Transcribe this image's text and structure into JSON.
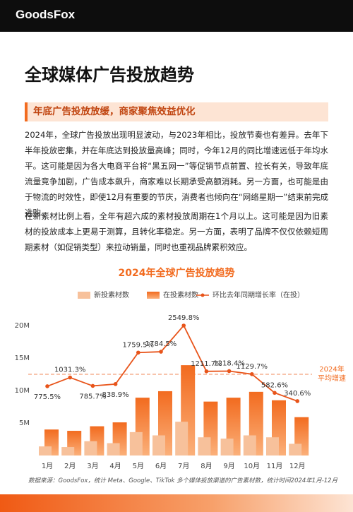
{
  "header": {
    "logo": "GoodsFox"
  },
  "title": "全球媒体广告投放趋势",
  "subtitle": "年底广告投放放缓，商家聚焦效益优化",
  "paragraphs": [
    "2024年，全球广告投放出现明显波动，与2023年相比，投放节奏也有差异。去年下半年投放密集，并在年底达到投放量高峰；同时，今年12月的同比增速远低于年均水平。这可能是因为各大电商平台将“黑五网一”等促销节点前置、拉长有关，导致年底流量竞争加剧，广告成本飙升，商家难以长期承受高额消耗。另一方面，也可能是由于物流的时效性，即使12月有重要的节庆，消费者也倾向在“网络星期一”结束前完成选购。",
    "在新素材比例上看，全年有超六成的素材投放周期在1个月以上。这可能是因为旧素材的投放成本上更易于测算，且转化率稳定。另一方面，表明了品牌不仅仅依赖短周期素材（如促销类型）来拉动销量，同时也重视品牌累积效应。"
  ],
  "chart_data": {
    "type": "bar",
    "title": "2024年全球广告投放趋势",
    "categories": [
      "1月",
      "2月",
      "3月",
      "4月",
      "5月",
      "6月",
      "7月",
      "8月",
      "9月",
      "10月",
      "11月",
      "12月"
    ],
    "series": [
      {
        "name": "新投素材数",
        "type": "bar",
        "color": "#f7c19b",
        "values": [
          1400000,
          1300000,
          2200000,
          1900000,
          3600000,
          3100000,
          5200000,
          2800000,
          2600000,
          3100000,
          2800000,
          1800000
        ]
      },
      {
        "name": "在投素材数",
        "type": "bar",
        "color": "#f26b1f",
        "values": [
          4000000,
          3800000,
          4500000,
          5100000,
          8900000,
          9900000,
          13900000,
          8300000,
          8900000,
          9800000,
          8500000,
          5900000
        ]
      },
      {
        "name": "环比去年同期增长率（在投）",
        "type": "line",
        "axis": "y2",
        "color": "#e8541a",
        "values": [
          775.5,
          1031.3,
          785.7,
          838.9,
          1759.5,
          1784.5,
          2549.8,
          1211.7,
          1218.4,
          1129.7,
          582.6,
          340.6
        ],
        "value_labels": [
          "775.5%",
          "1031.3%",
          "785.7%",
          "838.9%",
          "1759.5%",
          "1784.5%",
          "2549.8%",
          "1211.7%",
          "1218.4%",
          "1129.7%",
          "582.6%",
          "340.6%"
        ]
      }
    ],
    "ylim": [
      0,
      20000000
    ],
    "yticks": [
      {
        "value": 5000000,
        "label": "5M"
      },
      {
        "value": 10000000,
        "label": "10M"
      },
      {
        "value": 15000000,
        "label": "15M"
      },
      {
        "value": 20000000,
        "label": "20M"
      }
    ],
    "y2lim": [
      -1250,
      2550
    ],
    "average_line": {
      "value": 1125,
      "label": [
        "2024年",
        "平均增速"
      ]
    },
    "grid": false,
    "legend": "top"
  },
  "source": "数据来源：GoodsFox，统计 Meta、Google、TikTok 多个媒体投放渠道的广告素材数，统计时间2024年1月-12月"
}
